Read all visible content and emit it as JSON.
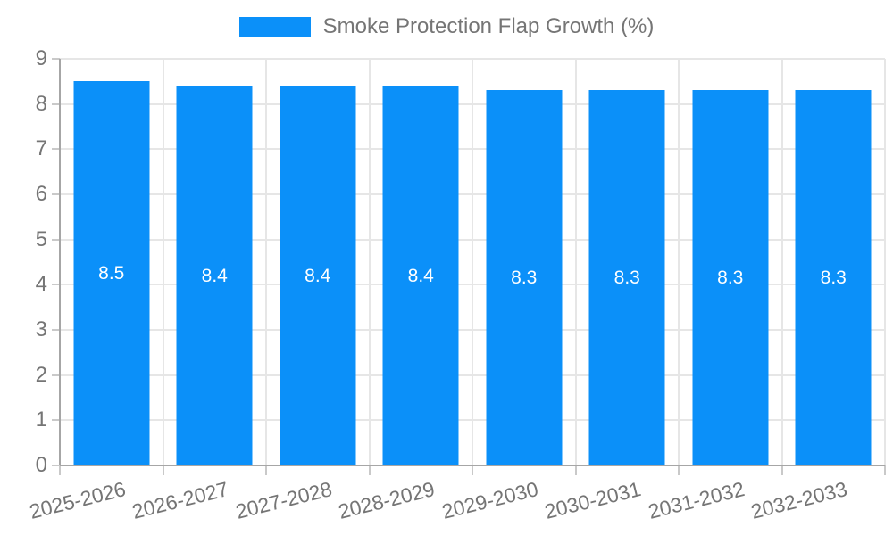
{
  "legend": {
    "label": "Smoke Protection Flap Growth (%)"
  },
  "chart_data": {
    "type": "bar",
    "title": "Smoke Protection Flap Growth (%)",
    "categories": [
      "2025-2026",
      "2026-2027",
      "2027-2028",
      "2028-2029",
      "2029-2030",
      "2030-2031",
      "2031-2032",
      "2032-2033"
    ],
    "values": [
      8.5,
      8.4,
      8.4,
      8.4,
      8.3,
      8.3,
      8.3,
      8.3
    ],
    "value_labels": [
      "8.5",
      "8.4",
      "8.4",
      "8.4",
      "8.3",
      "8.3",
      "8.3",
      "8.3"
    ],
    "xlabel": "",
    "ylabel": "",
    "ylim": [
      0,
      9
    ],
    "yticks": [
      0,
      1,
      2,
      3,
      4,
      5,
      6,
      7,
      8,
      9
    ],
    "grid": true,
    "legend_position": "top",
    "colors": {
      "bar": "#0b90f9",
      "value_label": "#ffffff",
      "axis_line": "#a6a6a6",
      "grid_line": "#e6e6e6",
      "tick_mark": "#c9c9c9",
      "tick_text": "#757575",
      "legend_text": "#757575"
    }
  }
}
